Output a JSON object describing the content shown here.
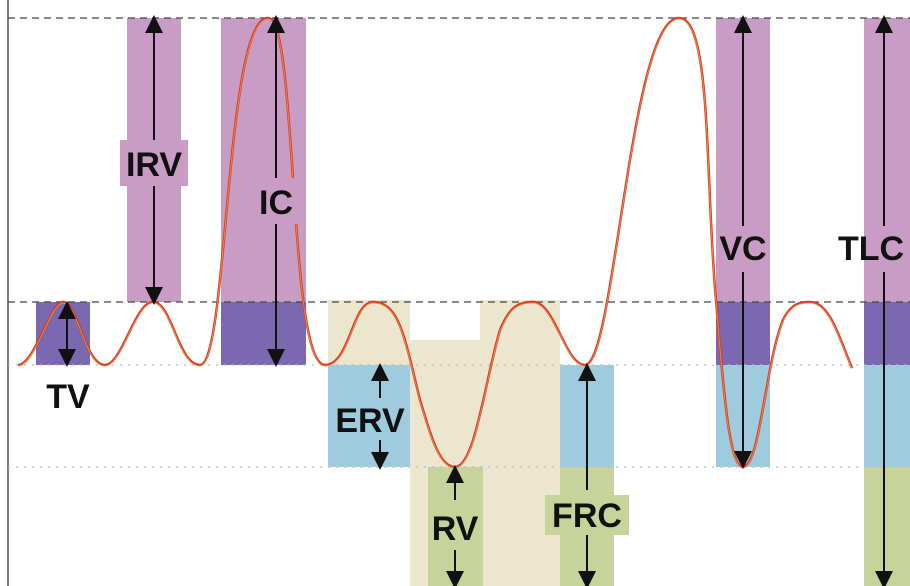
{
  "labels": {
    "tv": "TV",
    "irv": "IRV",
    "ic": "IC",
    "erv": "ERV",
    "rv": "RV",
    "frc": "FRC",
    "vc": "VC",
    "tlc": "TLC"
  },
  "colors": {
    "purple": "#c89cc4",
    "dark_purple": "#7a68b0",
    "light_blue": "#9ecbde",
    "green": "#c6d49b",
    "beige": "#ece6cf",
    "curve": "#d9352a",
    "dashed": "#444444"
  }
}
